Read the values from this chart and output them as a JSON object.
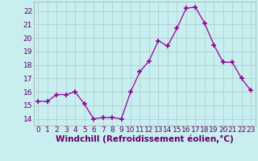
{
  "x": [
    0,
    1,
    2,
    3,
    4,
    5,
    6,
    7,
    8,
    9,
    10,
    11,
    12,
    13,
    14,
    15,
    16,
    17,
    18,
    19,
    20,
    21,
    22,
    23
  ],
  "y": [
    15.3,
    15.3,
    15.8,
    15.8,
    16.0,
    15.1,
    14.0,
    14.1,
    14.1,
    14.0,
    16.0,
    17.5,
    18.3,
    19.8,
    19.4,
    20.7,
    22.2,
    22.3,
    21.1,
    19.5,
    18.2,
    18.2,
    17.0,
    16.1
  ],
  "xlabel": "Windchill (Refroidissement éolien,°C)",
  "xlim": [
    -0.5,
    23.5
  ],
  "ylim": [
    13.5,
    22.7
  ],
  "yticks": [
    14,
    15,
    16,
    17,
    18,
    19,
    20,
    21,
    22
  ],
  "xticks": [
    0,
    1,
    2,
    3,
    4,
    5,
    6,
    7,
    8,
    9,
    10,
    11,
    12,
    13,
    14,
    15,
    16,
    17,
    18,
    19,
    20,
    21,
    22,
    23
  ],
  "line_color": "#990099",
  "bg_color": "#c8eef0",
  "grid_color": "#aacccc",
  "tick_label_fontsize": 6.5,
  "xlabel_fontsize": 7.5
}
